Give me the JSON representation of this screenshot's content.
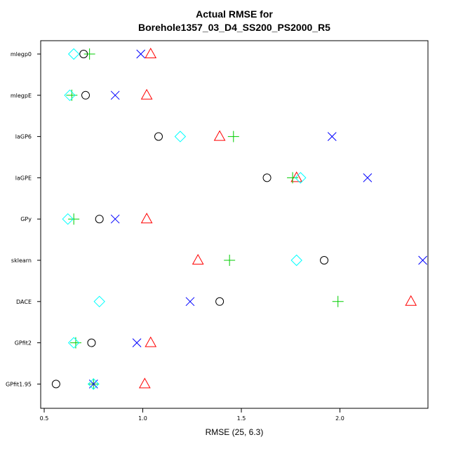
{
  "chart_data": {
    "type": "scatter",
    "title_line1": "Actual RMSE for",
    "title_line2": "Borehole1357_03_D4_SS200_PS2000_R5",
    "xlabel": "RMSE (25, 6.3)",
    "ylabel": "",
    "xlim": [
      0.5,
      2.45
    ],
    "xticks": [
      0.5,
      1.0,
      1.5,
      2.0
    ],
    "xtick_labels": [
      "0.5",
      "1.0",
      "1.5",
      "2.0"
    ],
    "categories": [
      "mlegp0",
      "mlegpE",
      "laGP6",
      "laGPE",
      "GPy",
      "sklearn",
      "DACE",
      "GPfit2",
      "GPfit1.95"
    ],
    "legend": "none",
    "grid": false,
    "series": [
      {
        "marker": "circle",
        "color": "#000000",
        "values": [
          0.7,
          0.71,
          1.08,
          1.63,
          0.78,
          1.92,
          1.39,
          0.74,
          0.56
        ]
      },
      {
        "marker": "triangle",
        "color": "#FF0000",
        "values": [
          1.04,
          1.02,
          1.39,
          1.78,
          1.02,
          1.28,
          2.36,
          1.04,
          1.01
        ]
      },
      {
        "marker": "plus",
        "color": "#00CD00",
        "values": [
          0.73,
          0.64,
          1.46,
          1.76,
          0.65,
          1.44,
          1.99,
          0.66,
          0.75
        ]
      },
      {
        "marker": "cross",
        "color": "#0000FF",
        "values": [
          0.99,
          0.86,
          1.96,
          2.14,
          0.86,
          2.42,
          1.24,
          0.97,
          0.75
        ]
      },
      {
        "marker": "diamond",
        "color": "#00FFFF",
        "values": [
          0.65,
          0.63,
          1.19,
          1.8,
          0.62,
          1.78,
          0.78,
          0.65,
          0.75
        ]
      }
    ]
  }
}
